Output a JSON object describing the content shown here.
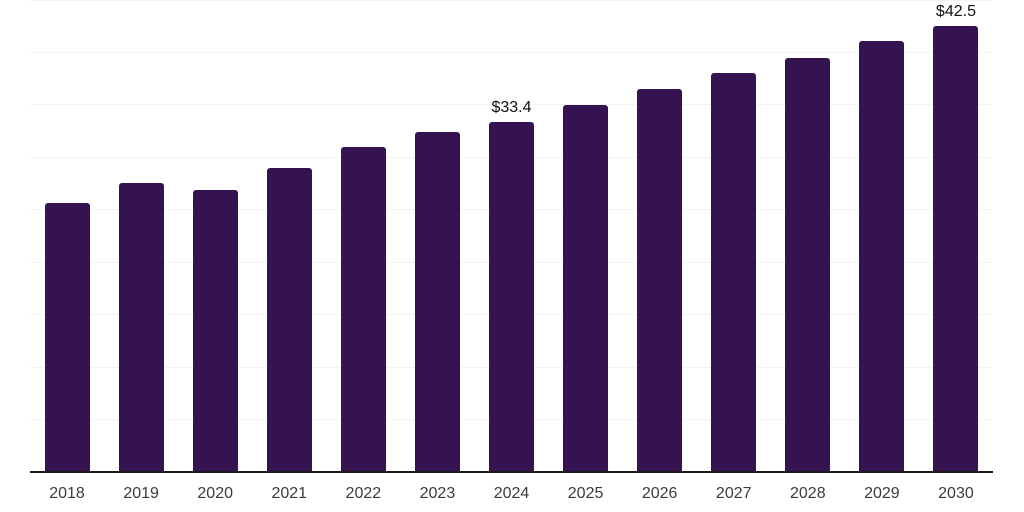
{
  "chart_data": {
    "type": "bar",
    "title": "",
    "xlabel": "",
    "ylabel": "",
    "categories": [
      "2018",
      "2019",
      "2020",
      "2021",
      "2022",
      "2023",
      "2024",
      "2025",
      "2026",
      "2027",
      "2028",
      "2029",
      "2030"
    ],
    "values": [
      25.6,
      27.6,
      26.9,
      29.0,
      31.0,
      32.4,
      33.4,
      35.0,
      36.5,
      38.0,
      39.5,
      41.1,
      42.5
    ],
    "data_labels": {
      "2024": "$33.4",
      "2030": "$42.5"
    },
    "ylim": [
      0,
      45
    ],
    "gridline_step": 5,
    "grid": true,
    "legend": false,
    "colors": {
      "bar": "#351351",
      "axis_line": "#1a1a1a",
      "gridline": "#f4f2f4",
      "tick_label": "#3b3b3b",
      "data_label": "#111111",
      "background": "#ffffff"
    }
  }
}
